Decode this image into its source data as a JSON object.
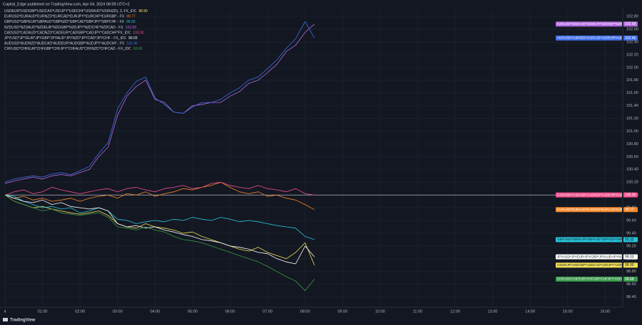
{
  "chart_data": {
    "type": "line",
    "header": "Capital_Edge published on TradingView.com, Apr 04, 2024 08:09 UTC+2",
    "footer": "TradingView",
    "x": [
      0,
      0.25,
      0.5,
      0.75,
      1,
      1.25,
      1.5,
      1.75,
      2,
      2.25,
      2.5,
      2.75,
      3,
      3.25,
      3.5,
      3.75,
      4,
      4.25,
      4.5,
      4.75,
      5,
      5.25,
      5.5,
      5.75,
      6,
      6.25,
      6.5,
      6.75,
      7,
      7.25,
      7.5,
      7.75,
      8,
      8.25
    ],
    "xlim": [
      0,
      16.45
    ],
    "xticks": [
      {
        "value": 0,
        "label": "4"
      },
      {
        "value": 1,
        "label": "01:00"
      },
      {
        "value": 2,
        "label": "02:00"
      },
      {
        "value": 3,
        "label": "03:00"
      },
      {
        "value": 4,
        "label": "04:00"
      },
      {
        "value": 5,
        "label": "05:00"
      },
      {
        "value": 6,
        "label": "06:00"
      },
      {
        "value": 7,
        "label": "07:00"
      },
      {
        "value": 8,
        "label": "08:00"
      },
      {
        "value": 9,
        "label": "09:00"
      },
      {
        "value": 10,
        "label": "10:00"
      },
      {
        "value": 11,
        "label": "11:00"
      },
      {
        "value": 12,
        "label": "12:00"
      },
      {
        "value": 13,
        "label": "13:00"
      },
      {
        "value": 14,
        "label": "14:00"
      },
      {
        "value": 15,
        "label": "15:00"
      },
      {
        "value": 16,
        "label": "16:00"
      }
    ],
    "ylim": [
      98.24,
      102.89
    ],
    "yticks": [
      {
        "value": 98.4,
        "label": "98.40"
      },
      {
        "value": 98.6,
        "label": "98.60"
      },
      {
        "value": 98.8,
        "label": "98.80"
      },
      {
        "value": 99,
        "label": "99.00"
      },
      {
        "value": 99.2,
        "label": "99.20"
      },
      {
        "value": 99.4,
        "label": "99.40"
      },
      {
        "value": 99.6,
        "label": "99.60"
      },
      {
        "value": 99.8,
        "label": "99.80"
      },
      {
        "value": 100,
        "label": "100.00"
      },
      {
        "value": 100.2,
        "label": "100.20"
      },
      {
        "value": 100.4,
        "label": "100.40"
      },
      {
        "value": 100.6,
        "label": "100.60"
      },
      {
        "value": 100.8,
        "label": "100.80"
      },
      {
        "value": 101,
        "label": "101.00"
      },
      {
        "value": 101.2,
        "label": "101.20"
      },
      {
        "value": 101.4,
        "label": "101.40"
      },
      {
        "value": 101.6,
        "label": "101.60"
      },
      {
        "value": 101.8,
        "label": "101.80"
      },
      {
        "value": 102,
        "label": "102.00"
      },
      {
        "value": 102.2,
        "label": "102.20"
      },
      {
        "value": 102.4,
        "label": "102.40"
      },
      {
        "value": 102.6,
        "label": "102.60"
      },
      {
        "value": 102.8,
        "label": "102.80"
      }
    ],
    "grid": true,
    "reference_line": 100,
    "series": [
      {
        "name": "USDEUR*USDGBP*USDCAD*USDJPY*USDCHF*USDAUD*USDNZD), 3, FX_IDC",
        "color": "#f2e05a",
        "last_label": "98.90",
        "values": [
          100.0,
          99.9,
          99.85,
          99.8,
          99.82,
          99.78,
          99.75,
          99.72,
          99.7,
          99.72,
          99.75,
          99.68,
          99.55,
          99.5,
          99.48,
          99.55,
          99.5,
          99.48,
          99.45,
          99.4,
          99.42,
          99.35,
          99.3,
          99.25,
          99.2,
          99.15,
          99.12,
          99.18,
          99.1,
          99.05,
          99.0,
          99.1,
          99.25,
          98.9
        ]
      },
      {
        "name": "EURUSD*EURAUD*EURNZD*EURCAD*EURJPY*EURCHF*EURGBP - FX",
        "color": "#f5892a",
        "last_label": "99.77",
        "values": [
          100.0,
          99.95,
          99.98,
          99.92,
          99.95,
          99.9,
          99.92,
          99.95,
          99.9,
          99.95,
          99.98,
          100.0,
          99.95,
          100.02,
          100.0,
          100.05,
          99.98,
          100.02,
          100.05,
          100.1,
          100.08,
          100.12,
          100.15,
          100.2,
          100.12,
          100.05,
          100.02,
          100.05,
          99.98,
          100.0,
          99.95,
          99.92,
          99.85,
          99.77
        ]
      },
      {
        "name": "GBPUSD*GBPEUR*GBPAUD*GBPNZD*GBPCAD*GBPJPY*GBPCHF - FX",
        "color": "#26c6da",
        "last_label": "99.30",
        "values": [
          100.0,
          99.98,
          99.9,
          99.85,
          99.8,
          99.82,
          99.78,
          99.8,
          99.72,
          99.75,
          99.8,
          99.75,
          99.62,
          99.6,
          99.55,
          99.58,
          99.6,
          99.58,
          99.62,
          99.6,
          99.65,
          99.62,
          99.6,
          99.65,
          99.62,
          99.58,
          99.6,
          99.58,
          99.55,
          99.52,
          99.5,
          99.48,
          99.35,
          99.3
        ]
      },
      {
        "name": "NZDUSD*NZDAUD*NZDEUR*NZDGBP*NZDJPY*NZDCHF*NZDCAD - FX",
        "color": "#b36be0",
        "last_label": "102.68",
        "values": [
          100.18,
          100.22,
          100.25,
          100.28,
          100.25,
          100.3,
          100.32,
          100.3,
          100.35,
          100.4,
          100.6,
          100.75,
          101.25,
          101.55,
          101.7,
          101.8,
          101.5,
          101.45,
          101.3,
          101.28,
          101.4,
          101.42,
          101.45,
          101.45,
          101.55,
          101.62,
          101.75,
          101.8,
          101.92,
          102.05,
          102.25,
          102.35,
          102.55,
          102.68
        ]
      },
      {
        "name": "CADUSD*CADAUD*CADNZD*CADEUR*CADGBP*CADJPY*CADCHF*FX_IDC",
        "color": "#f0508c",
        "last_label": "100.00",
        "values": [
          100.0,
          100.05,
          100.08,
          100.02,
          100.05,
          100.12,
          100.08,
          100.05,
          100.02,
          100.05,
          100.08,
          100.1,
          100.05,
          100.1,
          100.12,
          100.08,
          100.05,
          100.1,
          100.12,
          100.15,
          100.1,
          100.12,
          100.18,
          100.2,
          100.15,
          100.12,
          100.1,
          100.15,
          100.1,
          100.08,
          100.05,
          100.1,
          100.02,
          100.0
        ]
      },
      {
        "name": "JPYUSD*JPYEUR*JPYGBP*JPYAUD*JPYNZD*JPYCAD*JPYCHF - FX_IDC",
        "color": "#ffffff",
        "last_label": "99.03",
        "values": [
          100.0,
          99.95,
          99.9,
          99.88,
          99.92,
          99.85,
          99.88,
          99.82,
          99.8,
          99.78,
          99.8,
          99.75,
          99.55,
          99.5,
          99.52,
          99.48,
          99.5,
          99.45,
          99.42,
          99.38,
          99.35,
          99.3,
          99.28,
          99.25,
          99.2,
          99.18,
          99.15,
          99.1,
          99.08,
          99.0,
          98.95,
          98.92,
          99.2,
          99.03
        ]
      },
      {
        "name": "AUDUSD*AUDNZD*AUDCAD*AUDEUR*AUDGBP*AUDJPY*AUDCHF - FX",
        "color": "#3f6ee8",
        "last_label": "102.46",
        "values": [
          100.2,
          100.25,
          100.28,
          100.3,
          100.28,
          100.33,
          100.35,
          100.32,
          100.38,
          100.45,
          100.65,
          100.82,
          101.35,
          101.6,
          101.78,
          101.85,
          101.52,
          101.42,
          101.3,
          101.28,
          101.38,
          101.45,
          101.45,
          101.5,
          101.6,
          101.68,
          101.8,
          101.85,
          101.98,
          102.12,
          102.3,
          102.45,
          102.72,
          102.46
        ]
      },
      {
        "name": "CHFUSD*CHFEUR*CHFGBP*CHFJPY*CHFAUD*CHFNZD*CHFCAD - FX_IDC",
        "color": "#3a9a4a",
        "last_label": "98.68",
        "values": [
          100.0,
          99.9,
          99.85,
          99.8,
          99.75,
          99.78,
          99.72,
          99.7,
          99.68,
          99.7,
          99.72,
          99.65,
          99.5,
          99.48,
          99.45,
          99.5,
          99.45,
          99.42,
          99.35,
          99.3,
          99.28,
          99.25,
          99.2,
          99.15,
          99.1,
          99.05,
          99.0,
          98.95,
          98.88,
          98.8,
          98.72,
          98.65,
          98.5,
          98.68
        ]
      }
    ]
  }
}
